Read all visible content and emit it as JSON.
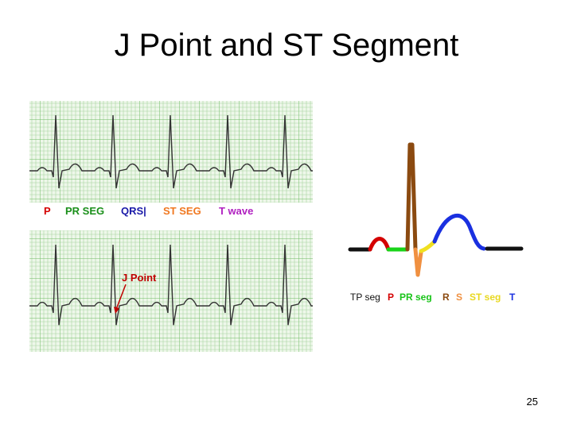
{
  "title": "J Point and ST Segment",
  "ecg_strip_top": {
    "labels": [
      "P",
      "PR SEG",
      "QRS|",
      "ST SEG",
      "T wave"
    ]
  },
  "ecg_strip_bottom": {
    "annotation": "J Point"
  },
  "waveform_diagram": {
    "labels": [
      "TP seg",
      "P",
      "PR seg",
      "R",
      "S",
      "ST seg",
      "T"
    ]
  },
  "page_number": "25"
}
